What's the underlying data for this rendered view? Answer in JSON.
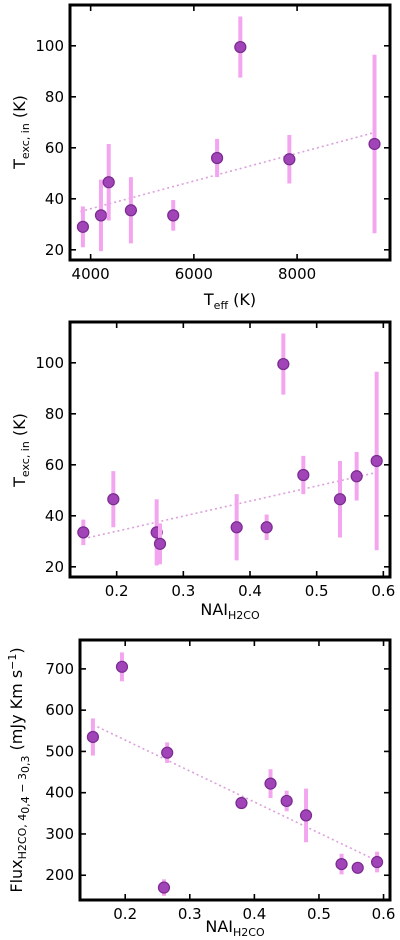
{
  "colors": {
    "point": "#a044b8",
    "point_edge": "#7a2a90",
    "errorbar": "#f3a6ef",
    "fit": "#dca0dc"
  },
  "chart_data": [
    {
      "type": "scatter",
      "title": "",
      "xlabel": "T_eff (K)",
      "ylabel": "T_exc, in (K)",
      "xlim": [
        3600,
        9800
      ],
      "ylim": [
        16,
        116
      ],
      "xticks": [
        4000,
        6000,
        8000
      ],
      "xtick_labels": [
        "4000",
        "6000",
        "8000"
      ],
      "yticks": [
        20,
        40,
        60,
        80,
        100
      ],
      "ytick_labels": [
        "20",
        "40",
        "60",
        "80",
        "100"
      ],
      "fit_line": {
        "x": [
          3800,
          9500
        ],
        "y": [
          35,
          66
        ]
      },
      "points": [
        {
          "x": 3850,
          "y": 29,
          "err": 8
        },
        {
          "x": 4200,
          "y": 33.5,
          "err": 14
        },
        {
          "x": 4350,
          "y": 46.5,
          "err": 15
        },
        {
          "x": 4780,
          "y": 35.5,
          "err": 13
        },
        {
          "x": 5600,
          "y": 33.5,
          "err": 6
        },
        {
          "x": 6450,
          "y": 56,
          "err": 7.5
        },
        {
          "x": 6900,
          "y": 99.5,
          "err": 12
        },
        {
          "x": 7850,
          "y": 55.5,
          "err": 9.5
        },
        {
          "x": 9500,
          "y": 61.5,
          "err": 35
        }
      ]
    },
    {
      "type": "scatter",
      "title": "",
      "xlabel": "NAI_H2CO",
      "ylabel": "T_exc, in (K)",
      "xlim": [
        0.13,
        0.61
      ],
      "ylim": [
        16,
        116
      ],
      "xticks": [
        0.2,
        0.3,
        0.4,
        0.5,
        0.6
      ],
      "xtick_labels": [
        "0.2",
        "0.3",
        "0.4",
        "0.5",
        "0.6"
      ],
      "yticks": [
        20,
        40,
        60,
        80,
        100
      ],
      "ytick_labels": [
        "20",
        "40",
        "60",
        "80",
        "100"
      ],
      "fit_line": {
        "x": [
          0.15,
          0.59
        ],
        "y": [
          31,
          57
        ]
      },
      "points": [
        {
          "x": 0.15,
          "y": 33.5,
          "err": 5
        },
        {
          "x": 0.195,
          "y": 46.5,
          "err": 11
        },
        {
          "x": 0.26,
          "y": 33.5,
          "err": 13
        },
        {
          "x": 0.265,
          "y": 29,
          "err": 8
        },
        {
          "x": 0.38,
          "y": 35.5,
          "err": 13
        },
        {
          "x": 0.425,
          "y": 35.5,
          "err": 5
        },
        {
          "x": 0.45,
          "y": 99.5,
          "err": 12
        },
        {
          "x": 0.48,
          "y": 56,
          "err": 7.5
        },
        {
          "x": 0.535,
          "y": 46.5,
          "err": 15
        },
        {
          "x": 0.56,
          "y": 55.5,
          "err": 9.5
        },
        {
          "x": 0.59,
          "y": 61.5,
          "err": 35
        }
      ]
    },
    {
      "type": "scatter",
      "title": "",
      "xlabel": "NAI_H2CO",
      "ylabel": "Flux_H2CO,4_0,4-3_0,3 (mJy Km s^-1)",
      "xlim": [
        0.13,
        0.61
      ],
      "ylim": [
        140,
        770
      ],
      "xticks": [
        0.2,
        0.3,
        0.4,
        0.5,
        0.6
      ],
      "xtick_labels": [
        "0.2",
        "0.3",
        "0.4",
        "0.5",
        "0.6"
      ],
      "yticks": [
        200,
        300,
        400,
        500,
        600,
        700
      ],
      "ytick_labels": [
        "200",
        "300",
        "400",
        "500",
        "600",
        "700"
      ],
      "fit_line": {
        "x": [
          0.15,
          0.59
        ],
        "y": [
          565,
          235
        ]
      },
      "points": [
        {
          "x": 0.15,
          "y": 535,
          "err": 45
        },
        {
          "x": 0.195,
          "y": 705,
          "err": 35
        },
        {
          "x": 0.26,
          "y": 170,
          "err": 20
        },
        {
          "x": 0.265,
          "y": 497,
          "err": 25
        },
        {
          "x": 0.38,
          "y": 375,
          "err": 0
        },
        {
          "x": 0.425,
          "y": 422,
          "err": 35
        },
        {
          "x": 0.45,
          "y": 380,
          "err": 25
        },
        {
          "x": 0.48,
          "y": 345,
          "err": 65
        },
        {
          "x": 0.535,
          "y": 227,
          "err": 25
        },
        {
          "x": 0.56,
          "y": 218,
          "err": 0
        },
        {
          "x": 0.59,
          "y": 232,
          "err": 25
        }
      ]
    }
  ]
}
